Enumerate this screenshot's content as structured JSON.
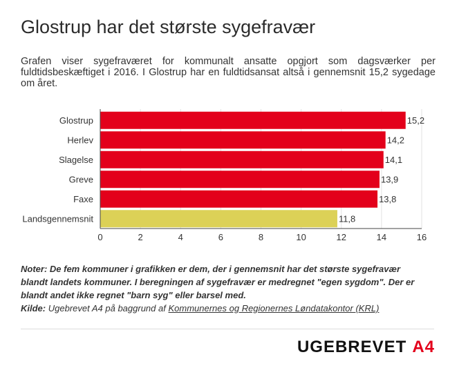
{
  "title": "Glostrup har det største sygefravær",
  "subtitle": "Grafen viser sygefraværet for kommunalt ansatte opgjort som dagsværker per fuldtidsbeskæftiget i 2016. I Glostrup har en fuldtidsansat altså i gennemsnit 15,2 sygedage om året.",
  "chart_data": {
    "type": "bar",
    "orientation": "horizontal",
    "categories": [
      "Glostrup",
      "Herlev",
      "Slagelse",
      "Greve",
      "Faxe",
      "Landsgennemsnit"
    ],
    "values": [
      15.2,
      14.2,
      14.1,
      13.9,
      13.8,
      11.8
    ],
    "value_labels": [
      "15,2",
      "14,2",
      "14,1",
      "13,9",
      "13,8",
      "11,8"
    ],
    "colors": [
      "#e3001b",
      "#e3001b",
      "#e3001b",
      "#e3001b",
      "#e3001b",
      "#dcd157"
    ],
    "xlim": [
      0,
      16
    ],
    "xticks": [
      "0",
      "2",
      "4",
      "6",
      "8",
      "10",
      "12",
      "14",
      "16"
    ],
    "grid": true,
    "title": "",
    "xlabel": "",
    "ylabel": ""
  },
  "notes": {
    "text": "Noter: De fem kommuner i grafikken er dem, der i gennemsnit har det største sygefravær blandt landets kommuner.  I beregningen af sygefravær er medregnet \"egen sygdom\". Der er blandt andet ikke regnet \"barn syg\" eller barsel med.",
    "source_label": "Kilde:",
    "source_text": "Ugebrevet A4 på baggrund af",
    "source_link": "Kommunernes og Regionernes Løndatakontor (KRL)"
  },
  "logo": {
    "part1": "UGEBREVET",
    "part2": "A4"
  }
}
